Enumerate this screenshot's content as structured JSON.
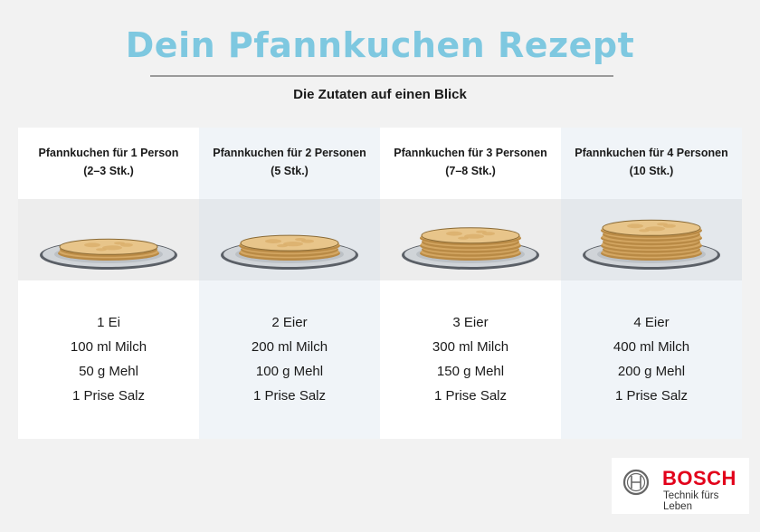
{
  "title": "Dein Pfannkuchen Rezept",
  "subtitle": "Die Zutaten auf einen Blick",
  "columns": [
    {
      "heading": "Pfannkuchen für 1 Person",
      "count": "(2–3 Stk.)",
      "pancake_layers": 2,
      "ingredients": [
        "1 Ei",
        "100 ml Milch",
        "50 g Mehl",
        "1 Prise Salz"
      ]
    },
    {
      "heading": "Pfannkuchen für 2 Personen",
      "count": "(5 Stk.)",
      "pancake_layers": 3,
      "ingredients": [
        "2 Eier",
        "200 ml Milch",
        "100 g Mehl",
        "1 Prise Salz"
      ]
    },
    {
      "heading": "Pfannkuchen für 3 Personen",
      "count": "(7–8 Stk.)",
      "pancake_layers": 5,
      "ingredients": [
        "3 Eier",
        "300 ml Milch",
        "150 g Mehl",
        "1 Prise Salz"
      ]
    },
    {
      "heading": "Pfannkuchen für 4 Personen",
      "count": "(10 Stk.)",
      "pancake_layers": 7,
      "ingredients": [
        "4 Eier",
        "400 ml Milch",
        "200 g Mehl",
        "1 Prise Salz"
      ]
    }
  ],
  "brand": {
    "name": "BOSCH",
    "tagline": "Technik fürs Leben",
    "color": "#e2001a"
  },
  "colors": {
    "title": "#7ec8e0",
    "pancake": "#e8c58a",
    "pancake_edge": "#b98a45",
    "plate": "#d0d4d8"
  }
}
